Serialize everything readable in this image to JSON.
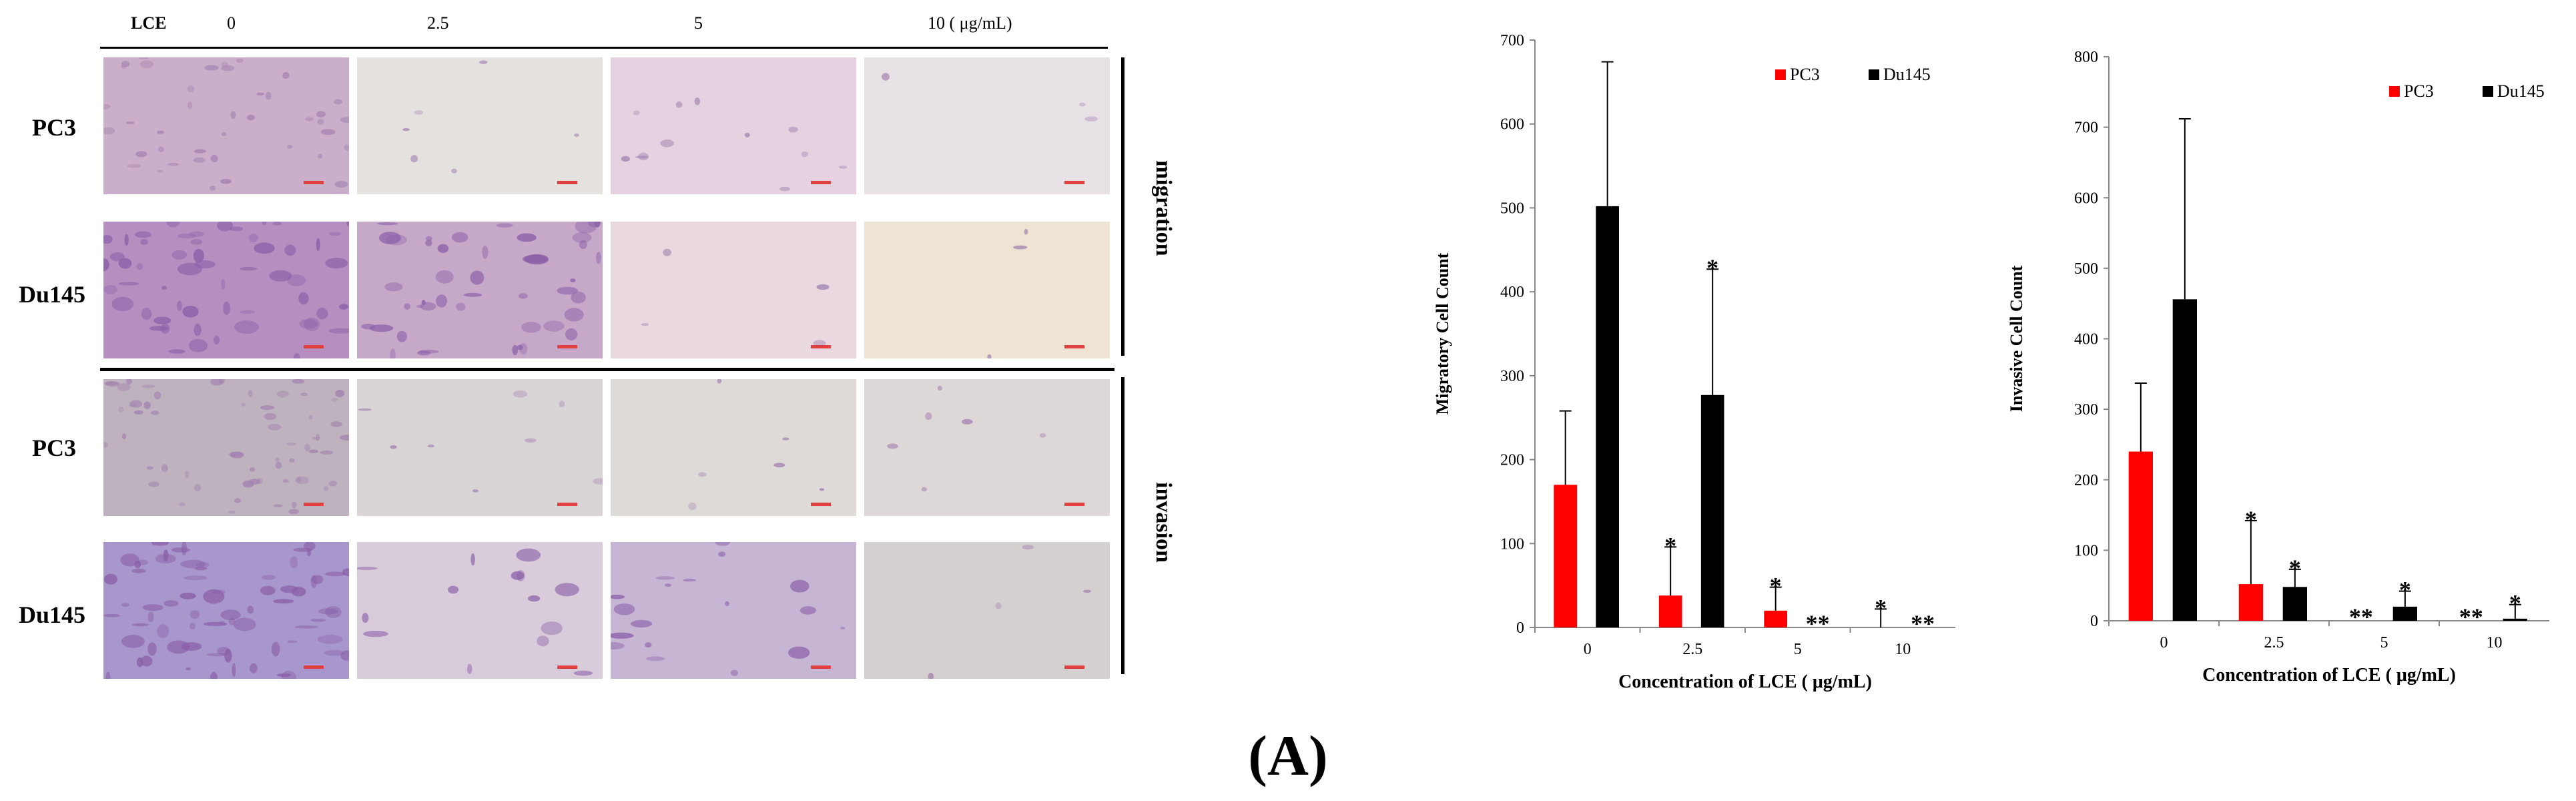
{
  "figure": {
    "panel_label": "(A)",
    "header_label": "LCE",
    "concentrations": [
      "0",
      "2.5",
      "5",
      "10 ( μg/mL)"
    ],
    "rows": [
      {
        "label": "PC3",
        "assay": "migration",
        "tint": "#ddc6d8"
      },
      {
        "label": "Du145",
        "assay": "migration",
        "tint": "#c4a0c6"
      },
      {
        "label": "PC3",
        "assay": "invasion",
        "tint": "#d6cfd5"
      },
      {
        "label": "Du145",
        "assay": "invasion",
        "tint": "#bfa9cc"
      }
    ],
    "tile_colors": [
      [
        "#cbaec9",
        "#e4e1df",
        "#e5d1df",
        "#e8e2e6"
      ],
      [
        "#b58fbf",
        "#c6a9c8",
        "#ead8e1",
        "#efe3d3"
      ],
      [
        "#bdb2bd",
        "#d9d5d6",
        "#dedad8",
        "#ddd7d8"
      ],
      [
        "#a897cc",
        "#d8cbda",
        "#c7b5d4",
        "#d3d0cf"
      ]
    ],
    "side_labels": [
      "migration",
      "invasion"
    ]
  },
  "chart_data": [
    {
      "type": "bar",
      "title": "",
      "xlabel": "Concentration of LCE ( μg/mL)",
      "ylabel": "Migratory Cell Count",
      "categories": [
        "0",
        "2.5",
        "5",
        "10"
      ],
      "ylim": [
        0,
        700
      ],
      "yticks": [
        "0",
        "100",
        "200",
        "300",
        "400",
        "500",
        "600",
        "700"
      ],
      "legend_position": "top-right",
      "grid": false,
      "series": [
        {
          "name": "PC3",
          "color": "#ff0000",
          "values": [
            170,
            38,
            20,
            0
          ],
          "errors": [
            88,
            58,
            28,
            22
          ],
          "annotations": [
            "",
            "*",
            "*",
            "*"
          ]
        },
        {
          "name": "Du145",
          "color": "#000000",
          "values": [
            502,
            277,
            0,
            0
          ],
          "errors": [
            172,
            150,
            0,
            0
          ],
          "annotations": [
            "",
            "*",
            "**",
            "**"
          ]
        }
      ]
    },
    {
      "type": "bar",
      "title": "",
      "xlabel": "Concentration of LCE ( μg/mL)",
      "ylabel": "Invasive  Cell Count",
      "categories": [
        "0",
        "2.5",
        "5",
        "10"
      ],
      "ylim": [
        0,
        800
      ],
      "yticks": [
        "0",
        "100",
        "200",
        "300",
        "400",
        "500",
        "600",
        "700",
        "800"
      ],
      "legend_position": "top-right",
      "grid": false,
      "series": [
        {
          "name": "PC3",
          "color": "#ff0000",
          "values": [
            240,
            52,
            0,
            0
          ],
          "errors": [
            97,
            90,
            0,
            0
          ],
          "annotations": [
            "",
            "*",
            "**",
            "**"
          ]
        },
        {
          "name": "Du145",
          "color": "#000000",
          "values": [
            456,
            48,
            20,
            3
          ],
          "errors": [
            256,
            25,
            22,
            20
          ],
          "annotations": [
            "",
            "*",
            "*",
            "*"
          ]
        }
      ]
    }
  ]
}
